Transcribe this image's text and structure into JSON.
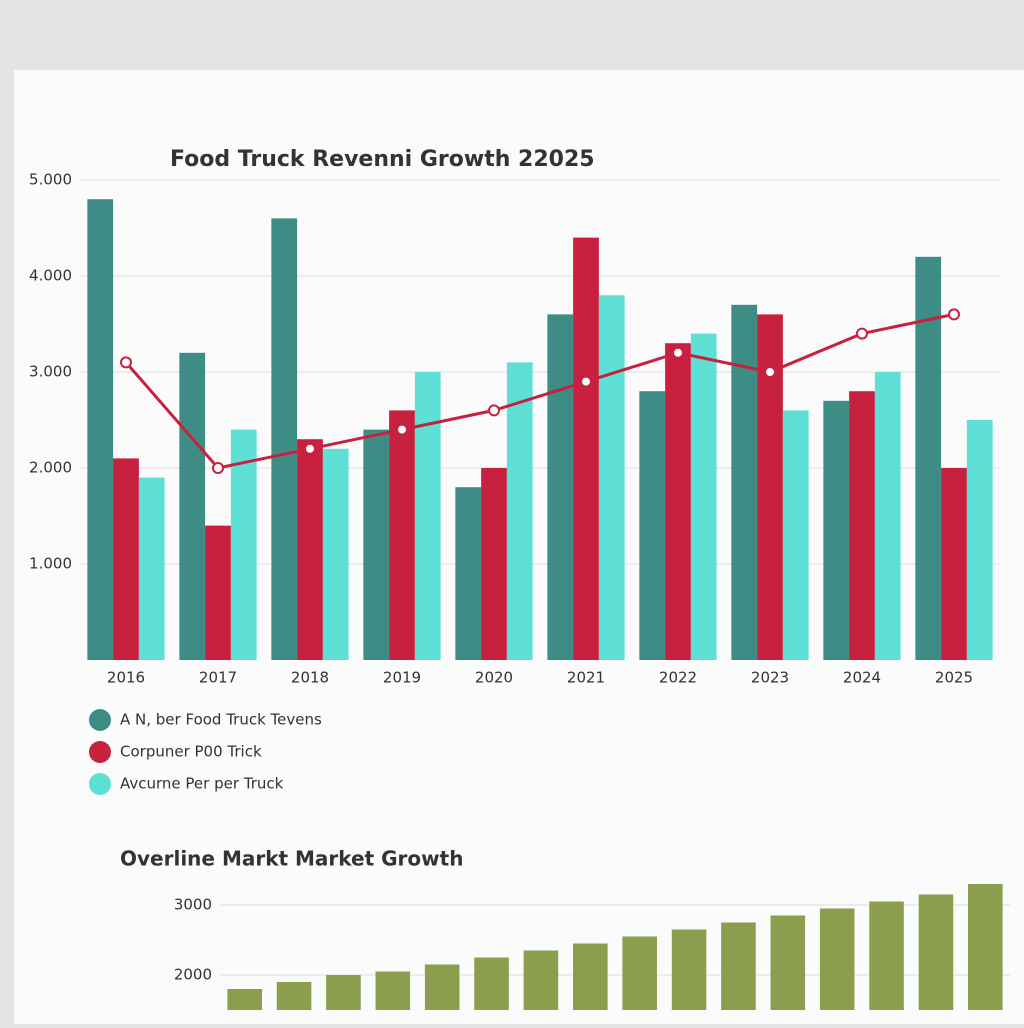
{
  "chart_data": [
    {
      "type": "bar",
      "title": "Food Truck Revenni Growth 22025",
      "categories": [
        "2016",
        "2017",
        "2018",
        "2019",
        "2020",
        "2021",
        "2022",
        "2023",
        "2024",
        "2025"
      ],
      "series": [
        {
          "name": "A N, ber Food Truck Tevens",
          "color": "#3d8c86",
          "values": [
            4800,
            3200,
            4600,
            2400,
            1800,
            3600,
            2800,
            3700,
            2700,
            4200
          ]
        },
        {
          "name": "Corpuner P00 Trick",
          "color": "#c8203f",
          "values": [
            2100,
            1400,
            2300,
            2600,
            2000,
            4400,
            3300,
            3600,
            2800,
            2000
          ]
        },
        {
          "name": "Avcurne Per per Truck",
          "color": "#5ee0d6",
          "values": [
            1900,
            2400,
            2200,
            3000,
            3100,
            3800,
            3400,
            2600,
            3000,
            2500
          ]
        }
      ],
      "trend": {
        "color": "#c8203f",
        "values": [
          3100,
          2000,
          2200,
          2400,
          2600,
          2900,
          3200,
          3000,
          3400,
          3600
        ]
      },
      "ylim": [
        0,
        5000
      ],
      "yticks": [
        {
          "value": 1000,
          "label": "1.000"
        },
        {
          "value": 2000,
          "label": "2.000"
        },
        {
          "value": 3000,
          "label": "3.000"
        },
        {
          "value": 4000,
          "label": "4.000"
        },
        {
          "value": 5000,
          "label": "5.000"
        }
      ],
      "grid": true,
      "legend": "bottom-left"
    },
    {
      "type": "bar",
      "title": "Overline Markt Market Growth",
      "color": "#8a9e4e",
      "values": [
        1800,
        1900,
        2000,
        2050,
        2150,
        2250,
        2350,
        2450,
        2550,
        2650,
        2750,
        2850,
        2950,
        3050,
        3150,
        3300
      ],
      "ylim": [
        1500,
        3500
      ],
      "yticks": [
        2000,
        3000
      ],
      "grid": true
    }
  ]
}
